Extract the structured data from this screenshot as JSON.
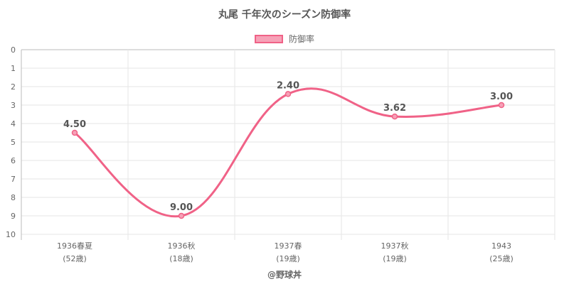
{
  "page": {
    "title": "丸尾 千年次のシーズン防御率",
    "footer": "@野球丼"
  },
  "chart_data": {
    "type": "line",
    "title": "丸尾 千年次のシーズン防御率",
    "categories": [
      {
        "season": "1936春夏",
        "age": "(52歳)"
      },
      {
        "season": "1936秋",
        "age": "(18歳)"
      },
      {
        "season": "1937春",
        "age": "(19歳)"
      },
      {
        "season": "1937秋",
        "age": "(19歳)"
      },
      {
        "season": "1943",
        "age": "(25歳)"
      }
    ],
    "series": [
      {
        "name": "防御率",
        "values": [
          4.5,
          9.0,
          2.4,
          3.62,
          3.0
        ],
        "labels": [
          "4.50",
          "9.00",
          "2.40",
          "3.62",
          "3.00"
        ],
        "color": "#f06287",
        "fill": "#f6a1b7"
      }
    ],
    "ylim": [
      0,
      10
    ],
    "y_reversed": true,
    "y_ticks": [
      0,
      1,
      2,
      3,
      4,
      5,
      6,
      7,
      8,
      9,
      10
    ],
    "grid": true,
    "legend_position": "top"
  }
}
